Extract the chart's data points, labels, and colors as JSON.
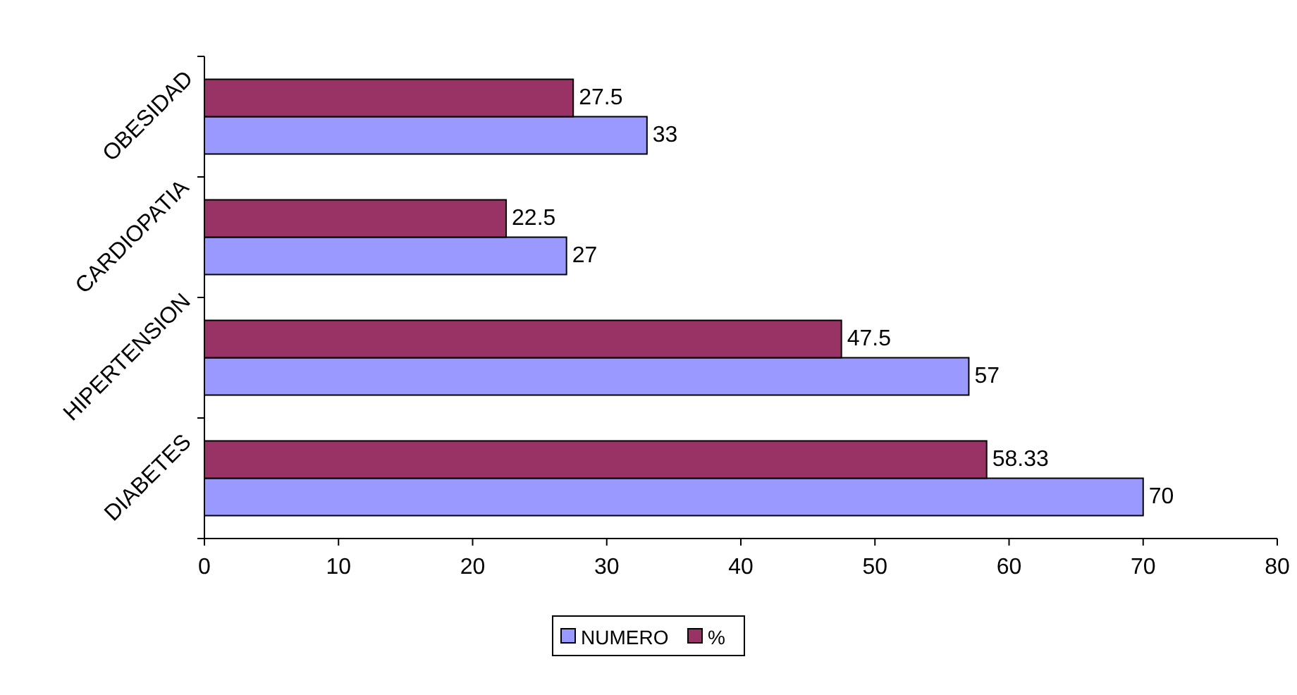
{
  "chart_data": {
    "type": "bar",
    "orientation": "horizontal",
    "categories": [
      "OBESIDAD",
      "CARDIOPATIA",
      "HIPERTENSION",
      "DIABETES"
    ],
    "series": [
      {
        "name": "NUMERO",
        "color": "#9999ff",
        "values": [
          33,
          27,
          57,
          70
        ]
      },
      {
        "name": "%",
        "color": "#993366",
        "values": [
          27.5,
          22.5,
          47.5,
          58.33
        ]
      }
    ],
    "xlim": [
      0,
      80
    ],
    "xticks": [
      0,
      10,
      20,
      30,
      40,
      50,
      60,
      70,
      80
    ],
    "data_labels": true,
    "grid": false,
    "legend": "bottom"
  }
}
